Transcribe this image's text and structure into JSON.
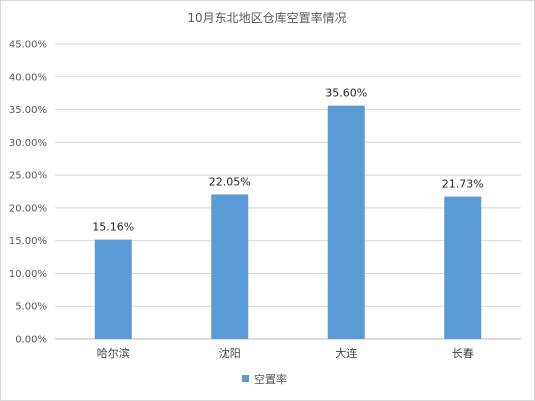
{
  "chart_data": {
    "type": "bar",
    "title": "10月东北地区仓库空置率情况",
    "categories": [
      "哈尔滨",
      "沈阳",
      "大连",
      "长春"
    ],
    "series": [
      {
        "name": "空置率",
        "values": [
          15.16,
          22.05,
          35.6,
          21.73
        ],
        "labels": [
          "15.16%",
          "22.05%",
          "35.60%",
          "21.73%"
        ],
        "color": "#5b9bd5"
      }
    ],
    "ylim": [
      0,
      45
    ],
    "yticks": [
      "0.00%",
      "5.00%",
      "10.00%",
      "15.00%",
      "20.00%",
      "25.00%",
      "30.00%",
      "35.00%",
      "40.00%",
      "45.00%"
    ],
    "grid": true,
    "legend": "bottom"
  }
}
